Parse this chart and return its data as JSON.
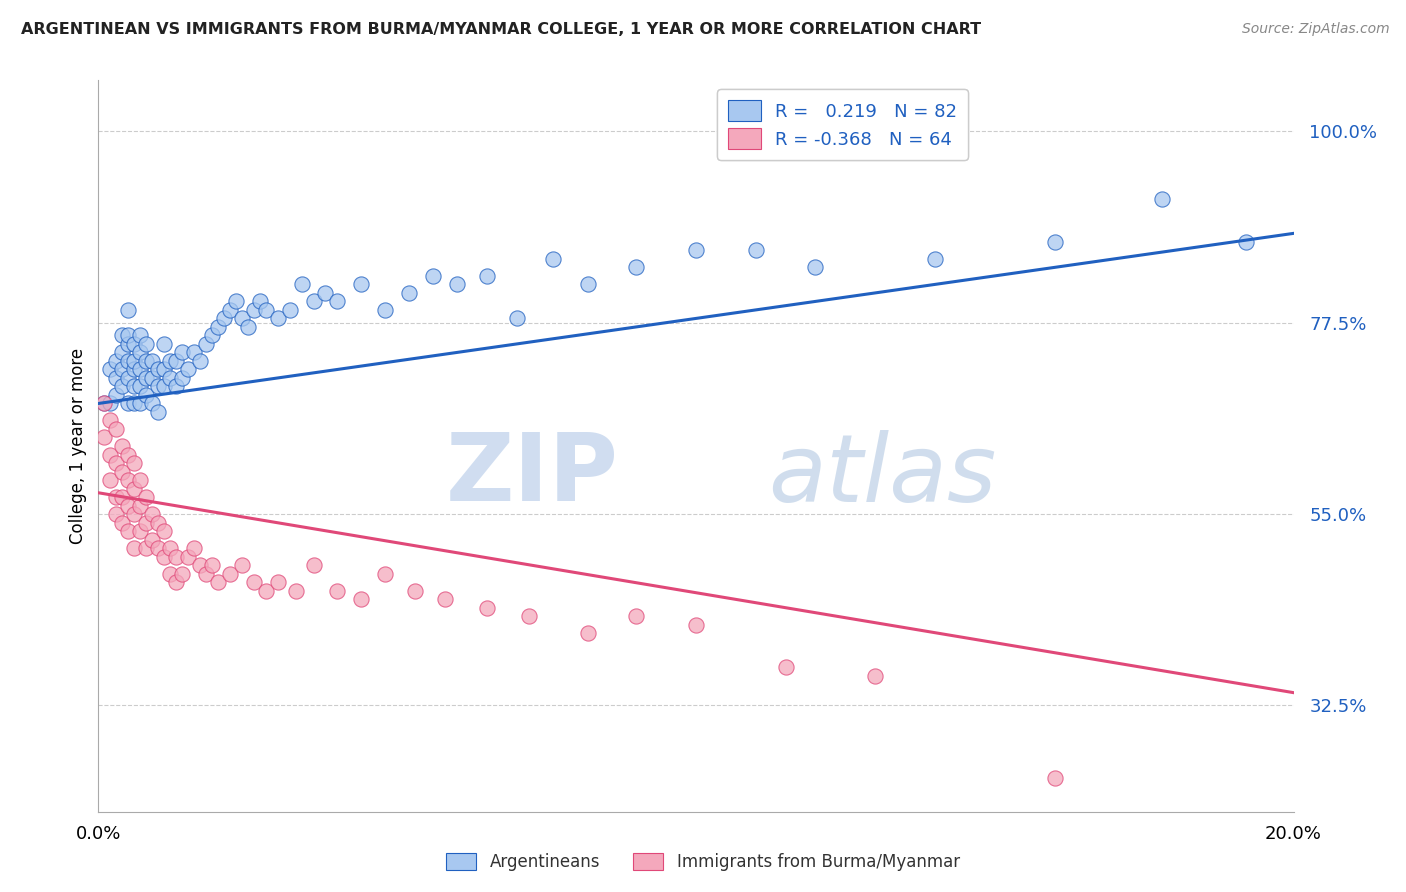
{
  "title": "ARGENTINEAN VS IMMIGRANTS FROM BURMA/MYANMAR COLLEGE, 1 YEAR OR MORE CORRELATION CHART",
  "source": "Source: ZipAtlas.com",
  "ylabel": "College, 1 year or more",
  "ytick_labels": [
    "32.5%",
    "55.0%",
    "77.5%",
    "100.0%"
  ],
  "ytick_values": [
    0.325,
    0.55,
    0.775,
    1.0
  ],
  "xlim": [
    0.0,
    0.2
  ],
  "ylim": [
    0.2,
    1.06
  ],
  "blue_R": "0.219",
  "blue_N": "82",
  "pink_R": "-0.368",
  "pink_N": "64",
  "blue_color": "#a8c8f0",
  "pink_color": "#f4a8bc",
  "blue_line_color": "#2060c0",
  "pink_line_color": "#e04878",
  "blue_scatter_x": [
    0.001,
    0.002,
    0.002,
    0.003,
    0.003,
    0.003,
    0.004,
    0.004,
    0.004,
    0.004,
    0.005,
    0.005,
    0.005,
    0.005,
    0.005,
    0.005,
    0.006,
    0.006,
    0.006,
    0.006,
    0.006,
    0.007,
    0.007,
    0.007,
    0.007,
    0.007,
    0.008,
    0.008,
    0.008,
    0.008,
    0.009,
    0.009,
    0.009,
    0.01,
    0.01,
    0.01,
    0.011,
    0.011,
    0.011,
    0.012,
    0.012,
    0.013,
    0.013,
    0.014,
    0.014,
    0.015,
    0.016,
    0.017,
    0.018,
    0.019,
    0.02,
    0.021,
    0.022,
    0.023,
    0.024,
    0.025,
    0.026,
    0.027,
    0.028,
    0.03,
    0.032,
    0.034,
    0.036,
    0.038,
    0.04,
    0.044,
    0.048,
    0.052,
    0.056,
    0.06,
    0.065,
    0.07,
    0.076,
    0.082,
    0.09,
    0.1,
    0.11,
    0.12,
    0.14,
    0.16,
    0.178,
    0.192
  ],
  "blue_scatter_y": [
    0.68,
    0.72,
    0.68,
    0.71,
    0.69,
    0.73,
    0.7,
    0.72,
    0.74,
    0.76,
    0.68,
    0.71,
    0.73,
    0.75,
    0.76,
    0.79,
    0.68,
    0.7,
    0.72,
    0.73,
    0.75,
    0.68,
    0.7,
    0.72,
    0.74,
    0.76,
    0.69,
    0.71,
    0.73,
    0.75,
    0.68,
    0.71,
    0.73,
    0.67,
    0.7,
    0.72,
    0.7,
    0.72,
    0.75,
    0.71,
    0.73,
    0.7,
    0.73,
    0.71,
    0.74,
    0.72,
    0.74,
    0.73,
    0.75,
    0.76,
    0.77,
    0.78,
    0.79,
    0.8,
    0.78,
    0.77,
    0.79,
    0.8,
    0.79,
    0.78,
    0.79,
    0.82,
    0.8,
    0.81,
    0.8,
    0.82,
    0.79,
    0.81,
    0.83,
    0.82,
    0.83,
    0.78,
    0.85,
    0.82,
    0.84,
    0.86,
    0.86,
    0.84,
    0.85,
    0.87,
    0.92,
    0.87
  ],
  "pink_scatter_x": [
    0.001,
    0.001,
    0.002,
    0.002,
    0.002,
    0.003,
    0.003,
    0.003,
    0.003,
    0.004,
    0.004,
    0.004,
    0.004,
    0.005,
    0.005,
    0.005,
    0.005,
    0.006,
    0.006,
    0.006,
    0.006,
    0.007,
    0.007,
    0.007,
    0.008,
    0.008,
    0.008,
    0.009,
    0.009,
    0.01,
    0.01,
    0.011,
    0.011,
    0.012,
    0.012,
    0.013,
    0.013,
    0.014,
    0.015,
    0.016,
    0.017,
    0.018,
    0.019,
    0.02,
    0.022,
    0.024,
    0.026,
    0.028,
    0.03,
    0.033,
    0.036,
    0.04,
    0.044,
    0.048,
    0.053,
    0.058,
    0.065,
    0.072,
    0.082,
    0.09,
    0.1,
    0.115,
    0.13,
    0.16
  ],
  "pink_scatter_y": [
    0.68,
    0.64,
    0.66,
    0.62,
    0.59,
    0.65,
    0.61,
    0.57,
    0.55,
    0.63,
    0.6,
    0.57,
    0.54,
    0.62,
    0.59,
    0.56,
    0.53,
    0.61,
    0.58,
    0.55,
    0.51,
    0.59,
    0.56,
    0.53,
    0.57,
    0.54,
    0.51,
    0.55,
    0.52,
    0.54,
    0.51,
    0.53,
    0.5,
    0.51,
    0.48,
    0.5,
    0.47,
    0.48,
    0.5,
    0.51,
    0.49,
    0.48,
    0.49,
    0.47,
    0.48,
    0.49,
    0.47,
    0.46,
    0.47,
    0.46,
    0.49,
    0.46,
    0.45,
    0.48,
    0.46,
    0.45,
    0.44,
    0.43,
    0.41,
    0.43,
    0.42,
    0.37,
    0.36,
    0.24
  ],
  "blue_line_x": [
    0.0,
    0.2
  ],
  "blue_line_y": [
    0.68,
    0.88
  ],
  "pink_line_x": [
    0.0,
    0.2
  ],
  "pink_line_y": [
    0.575,
    0.34
  ],
  "watermark_zip": "ZIP",
  "watermark_atlas": "atlas",
  "background_color": "#ffffff",
  "grid_color": "#cccccc",
  "spine_color": "#aaaaaa"
}
